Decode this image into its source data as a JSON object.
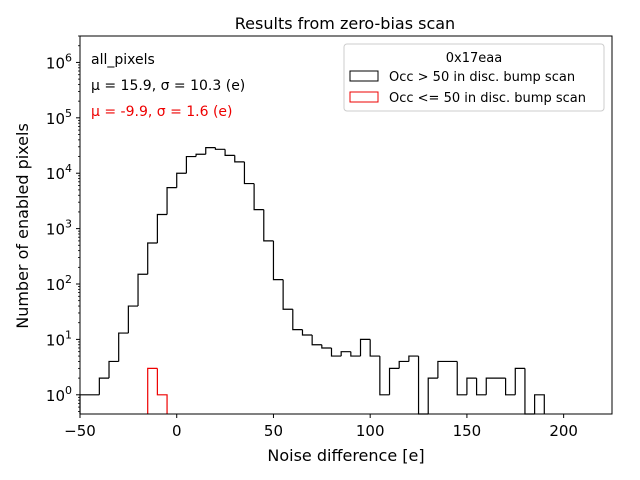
{
  "chart_data": {
    "type": "histogram",
    "title": "Results from zero-bias scan",
    "xlabel": "Noise difference [e]",
    "ylabel": "Number of enabled pixels",
    "xlim": [
      -50,
      225
    ],
    "ylim": [
      0.45,
      3000000
    ],
    "yscale": "log",
    "bin_width": 5,
    "x_ticks": [
      -50,
      0,
      50,
      100,
      150,
      200
    ],
    "x_tick_labels": [
      "−50",
      "0",
      "50",
      "100",
      "150",
      "200"
    ],
    "y_ticks": [
      1,
      10,
      100,
      1000,
      10000,
      100000,
      1000000
    ],
    "y_tick_bases": [
      "10",
      "10",
      "10",
      "10",
      "10",
      "10",
      "10"
    ],
    "y_tick_exponents": [
      "0",
      "1",
      "2",
      "3",
      "4",
      "5",
      "6"
    ],
    "annotations": {
      "dataset": "all_pixels",
      "stats_all": "μ = 15.9, σ = 10.3 (e)",
      "stats_low": "μ = -9.9, σ = 1.6 (e)"
    },
    "legend": {
      "title": "0x17eaa",
      "position": "top-right",
      "entries": [
        {
          "label": "Occ > 50 in disc. bump scan",
          "color": "#000000"
        },
        {
          "label": "Occ <= 50 in disc. bump scan",
          "color": "#ee0000"
        }
      ]
    },
    "series": [
      {
        "name": "Occ > 50 in disc. bump scan",
        "color": "#000000",
        "bins": [
          {
            "x0": -50,
            "x1": -40,
            "count": 1
          },
          {
            "x0": -40,
            "x1": -35,
            "count": 2
          },
          {
            "x0": -35,
            "x1": -30,
            "count": 4
          },
          {
            "x0": -30,
            "x1": -25,
            "count": 13
          },
          {
            "x0": -25,
            "x1": -20,
            "count": 40
          },
          {
            "x0": -20,
            "x1": -15,
            "count": 150
          },
          {
            "x0": -15,
            "x1": -10,
            "count": 550
          },
          {
            "x0": -10,
            "x1": -5,
            "count": 1800
          },
          {
            "x0": -5,
            "x1": 0,
            "count": 5500
          },
          {
            "x0": 0,
            "x1": 5,
            "count": 10000
          },
          {
            "x0": 5,
            "x1": 10,
            "count": 20000
          },
          {
            "x0": 10,
            "x1": 15,
            "count": 22000
          },
          {
            "x0": 15,
            "x1": 20,
            "count": 29000
          },
          {
            "x0": 20,
            "x1": 25,
            "count": 27000
          },
          {
            "x0": 25,
            "x1": 30,
            "count": 21000
          },
          {
            "x0": 30,
            "x1": 35,
            "count": 16000
          },
          {
            "x0": 35,
            "x1": 40,
            "count": 6500
          },
          {
            "x0": 40,
            "x1": 45,
            "count": 2200
          },
          {
            "x0": 45,
            "x1": 50,
            "count": 600
          },
          {
            "x0": 50,
            "x1": 55,
            "count": 120
          },
          {
            "x0": 55,
            "x1": 60,
            "count": 35
          },
          {
            "x0": 60,
            "x1": 65,
            "count": 15
          },
          {
            "x0": 65,
            "x1": 70,
            "count": 12
          },
          {
            "x0": 70,
            "x1": 75,
            "count": 8
          },
          {
            "x0": 75,
            "x1": 80,
            "count": 7
          },
          {
            "x0": 80,
            "x1": 85,
            "count": 5
          },
          {
            "x0": 85,
            "x1": 90,
            "count": 6
          },
          {
            "x0": 90,
            "x1": 95,
            "count": 5
          },
          {
            "x0": 95,
            "x1": 100,
            "count": 10
          },
          {
            "x0": 100,
            "x1": 105,
            "count": 5
          },
          {
            "x0": 105,
            "x1": 110,
            "count": 1
          },
          {
            "x0": 110,
            "x1": 115,
            "count": 3
          },
          {
            "x0": 115,
            "x1": 120,
            "count": 4
          },
          {
            "x0": 120,
            "x1": 125,
            "count": 5
          },
          {
            "x0": 125,
            "x1": 130,
            "count": 0
          },
          {
            "x0": 130,
            "x1": 135,
            "count": 2
          },
          {
            "x0": 135,
            "x1": 145,
            "count": 4
          },
          {
            "x0": 145,
            "x1": 150,
            "count": 1
          },
          {
            "x0": 150,
            "x1": 155,
            "count": 2
          },
          {
            "x0": 155,
            "x1": 160,
            "count": 1
          },
          {
            "x0": 160,
            "x1": 170,
            "count": 2
          },
          {
            "x0": 170,
            "x1": 175,
            "count": 1
          },
          {
            "x0": 175,
            "x1": 180,
            "count": 3
          },
          {
            "x0": 180,
            "x1": 185,
            "count": 0
          },
          {
            "x0": 185,
            "x1": 190,
            "count": 1
          }
        ]
      },
      {
        "name": "Occ <= 50 in disc. bump scan",
        "color": "#ee0000",
        "bins": [
          {
            "x0": -15,
            "x1": -10,
            "count": 3
          },
          {
            "x0": -10,
            "x1": -5,
            "count": 1
          }
        ]
      }
    ]
  }
}
